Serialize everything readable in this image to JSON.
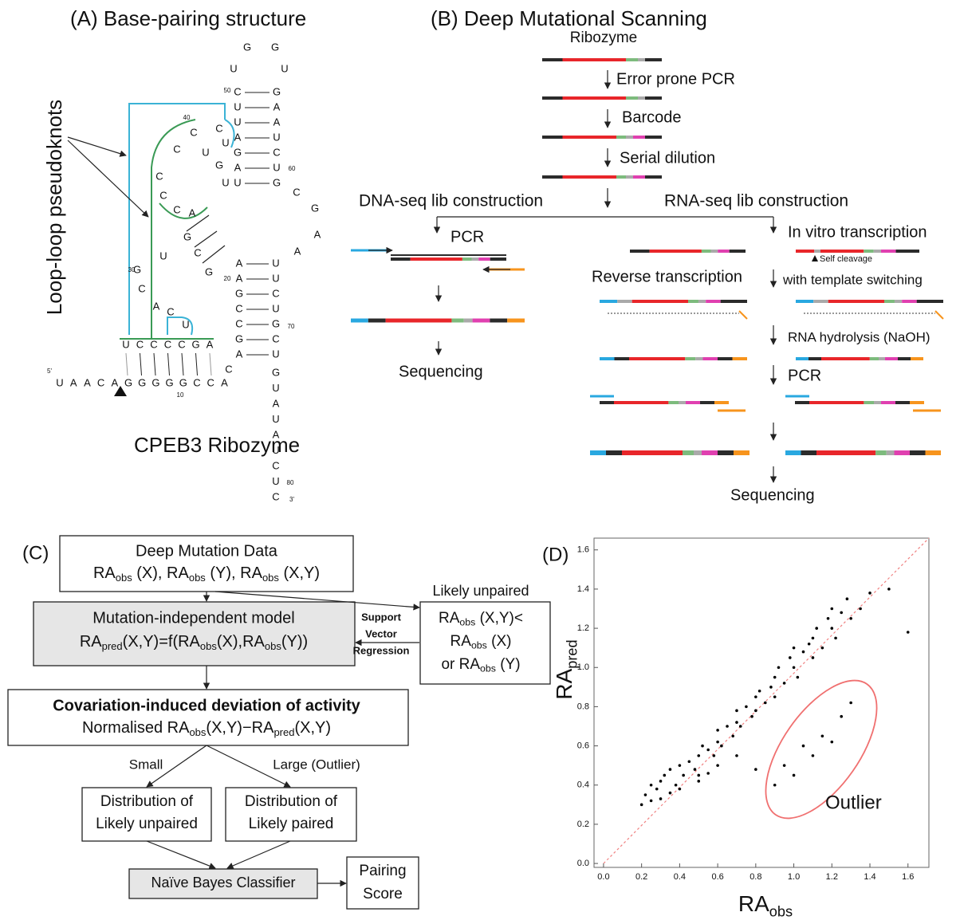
{
  "panel_a": {
    "title": "(A) Base-pairing structure",
    "pseudoknots": "Loop-loop pseudoknots",
    "name": "CPEB3 Ribozyme",
    "strands": [
      [
        "U",
        "A",
        "A",
        "C",
        "A",
        "G",
        "G",
        "G",
        "G",
        "G",
        "C",
        "C",
        "A"
      ],
      [
        "U",
        "C",
        "C",
        "C",
        "C",
        "G",
        "A"
      ],
      [
        "C",
        "U",
        "U",
        "A",
        "G",
        "A",
        "U"
      ],
      [
        "G",
        "A",
        "A",
        "U",
        "C",
        "U",
        "G"
      ],
      [
        "G",
        "G",
        "U",
        "U"
      ],
      [
        "C",
        "G",
        "A",
        "A"
      ],
      [
        "A",
        "A",
        "G",
        "C",
        "C",
        "G",
        "A"
      ],
      [
        "U",
        "U",
        "C",
        "U",
        "G",
        "C",
        "U"
      ],
      [
        "G",
        "U",
        "A",
        "U",
        "A",
        "U",
        "C",
        "U",
        "C"
      ],
      [
        "C"
      ],
      [
        "C",
        "C",
        "U",
        "C",
        "C",
        "C",
        "A",
        "G",
        "C",
        "G",
        "U",
        "G",
        "C",
        "A",
        "C",
        "U",
        "C",
        "U",
        "G",
        "U"
      ]
    ],
    "numbers": [
      "50",
      "60",
      "40",
      "30",
      "20",
      "70",
      "10",
      "80"
    ],
    "ends": [
      "5'",
      "3'"
    ]
  },
  "panel_b": {
    "title": "(B) Deep Mutational Scanning",
    "steps": [
      "Ribozyme",
      "Error prone PCR",
      "Barcode",
      "Serial dilution"
    ],
    "dna": {
      "title": "DNA-seq lib construction",
      "steps": [
        "PCR",
        "Sequencing"
      ]
    },
    "rna": {
      "title": "RNA-seq lib construction",
      "steps": [
        "In vitro transcription",
        "Self cleavage",
        "Reverse transcription",
        "with template switching",
        "RNA hydrolysis (NaOH)",
        "PCR",
        "Sequencing"
      ]
    }
  },
  "panel_c": {
    "label": "(C)",
    "data_box": {
      "title": "Deep Mutation Data",
      "formula": [
        "RA",
        "obs",
        " (X), RA",
        "obs",
        " (Y), RA",
        "obs",
        " (X,Y)"
      ]
    },
    "model_box": {
      "title": "Mutation-independent model",
      "formula": [
        "RA",
        "pred",
        "(X,Y)=f(RA",
        "obs",
        "(X),RA",
        "obs",
        "(Y))"
      ]
    },
    "svr": [
      "Support",
      "Vector",
      "Regression"
    ],
    "unpaired_box": {
      "title": "Likely unpaired",
      "lines": [
        [
          "RA",
          "obs",
          " (X,Y)<"
        ],
        [
          "RA",
          "obs",
          " (X)"
        ],
        [
          "or RA",
          "obs",
          " (Y)"
        ]
      ]
    },
    "deviation_box": {
      "title": "Covariation-induced deviation of activity",
      "formula": [
        "Normalised RA",
        "obs",
        "(X,Y)−RA",
        "pred",
        "(X,Y)"
      ]
    },
    "branches": [
      "Small",
      "Large (Outlier)"
    ],
    "dist_boxes": [
      [
        "Distribution of",
        "Likely unpaired"
      ],
      [
        "Distribution of",
        "Likely paired"
      ]
    ],
    "classifier": "Naïve Bayes Classifier",
    "score": [
      "Pairing",
      "Score"
    ]
  },
  "chart_data": {
    "type": "scatter",
    "label": "(D)",
    "x_label": [
      "RA",
      "obs"
    ],
    "y_label": [
      "RA",
      "pred"
    ],
    "annotation": "Outlier",
    "color": "#000000",
    "x": [
      0.2,
      0.22,
      0.25,
      0.25,
      0.28,
      0.3,
      0.3,
      0.32,
      0.35,
      0.35,
      0.38,
      0.4,
      0.4,
      0.42,
      0.45,
      0.48,
      0.5,
      0.5,
      0.52,
      0.55,
      0.58,
      0.6,
      0.6,
      0.62,
      0.65,
      0.68,
      0.7,
      0.7,
      0.72,
      0.75,
      0.78,
      0.8,
      0.8,
      0.82,
      0.85,
      0.88,
      0.9,
      0.9,
      0.92,
      0.95,
      0.98,
      1.0,
      1.0,
      1.02,
      1.05,
      1.08,
      1.1,
      1.1,
      1.12,
      1.15,
      1.18,
      1.2,
      1.2,
      1.22,
      1.25,
      1.28,
      1.3,
      1.35,
      1.4,
      1.5,
      1.6,
      0.9,
      0.95,
      1.0,
      1.05,
      1.1,
      1.15,
      1.2,
      1.25,
      1.3,
      0.7,
      0.8,
      0.6,
      0.5,
      0.55
    ],
    "y": [
      0.3,
      0.35,
      0.32,
      0.4,
      0.38,
      0.33,
      0.42,
      0.45,
      0.36,
      0.48,
      0.4,
      0.38,
      0.5,
      0.45,
      0.52,
      0.48,
      0.55,
      0.45,
      0.6,
      0.58,
      0.55,
      0.62,
      0.68,
      0.6,
      0.7,
      0.65,
      0.72,
      0.78,
      0.7,
      0.8,
      0.75,
      0.85,
      0.78,
      0.88,
      0.82,
      0.9,
      0.95,
      0.85,
      1.0,
      0.92,
      1.05,
      1.0,
      1.1,
      0.95,
      1.08,
      1.12,
      1.15,
      1.05,
      1.2,
      1.1,
      1.25,
      1.2,
      1.3,
      1.15,
      1.28,
      1.35,
      1.25,
      1.3,
      1.38,
      1.4,
      1.18,
      0.4,
      0.5,
      0.45,
      0.6,
      0.55,
      0.65,
      0.62,
      0.75,
      0.82,
      0.55,
      0.48,
      0.5,
      0.42,
      0.46
    ],
    "xlim": [
      -0.05,
      1.71
    ],
    "ylim": [
      -0.02,
      1.66
    ],
    "xticks": [
      {
        "value": 0,
        "label": "0.0"
      },
      {
        "value": 0.2,
        "label": "0.2"
      },
      {
        "value": 0.4,
        "label": "0.4"
      },
      {
        "value": 0.6,
        "label": "0.6"
      },
      {
        "value": 0.8,
        "label": "0.8"
      },
      {
        "value": 1,
        "label": "1.0"
      },
      {
        "value": 1.2,
        "label": "1.2"
      },
      {
        "value": 1.4,
        "label": "1.4"
      },
      {
        "value": 1.6,
        "label": "1.6"
      }
    ],
    "yticks": [
      {
        "value": 0,
        "label": "0.0"
      },
      {
        "value": 0.2,
        "label": "0.2"
      },
      {
        "value": 0.4,
        "label": "0.4"
      },
      {
        "value": 0.6,
        "label": "0.6"
      },
      {
        "value": 0.8,
        "label": "0.8"
      },
      {
        "value": 1,
        "label": "1.0"
      },
      {
        "value": 1.2,
        "label": "1.2"
      },
      {
        "value": 1.4,
        "label": "1.4"
      },
      {
        "value": 1.6,
        "label": "1.6"
      }
    ]
  }
}
